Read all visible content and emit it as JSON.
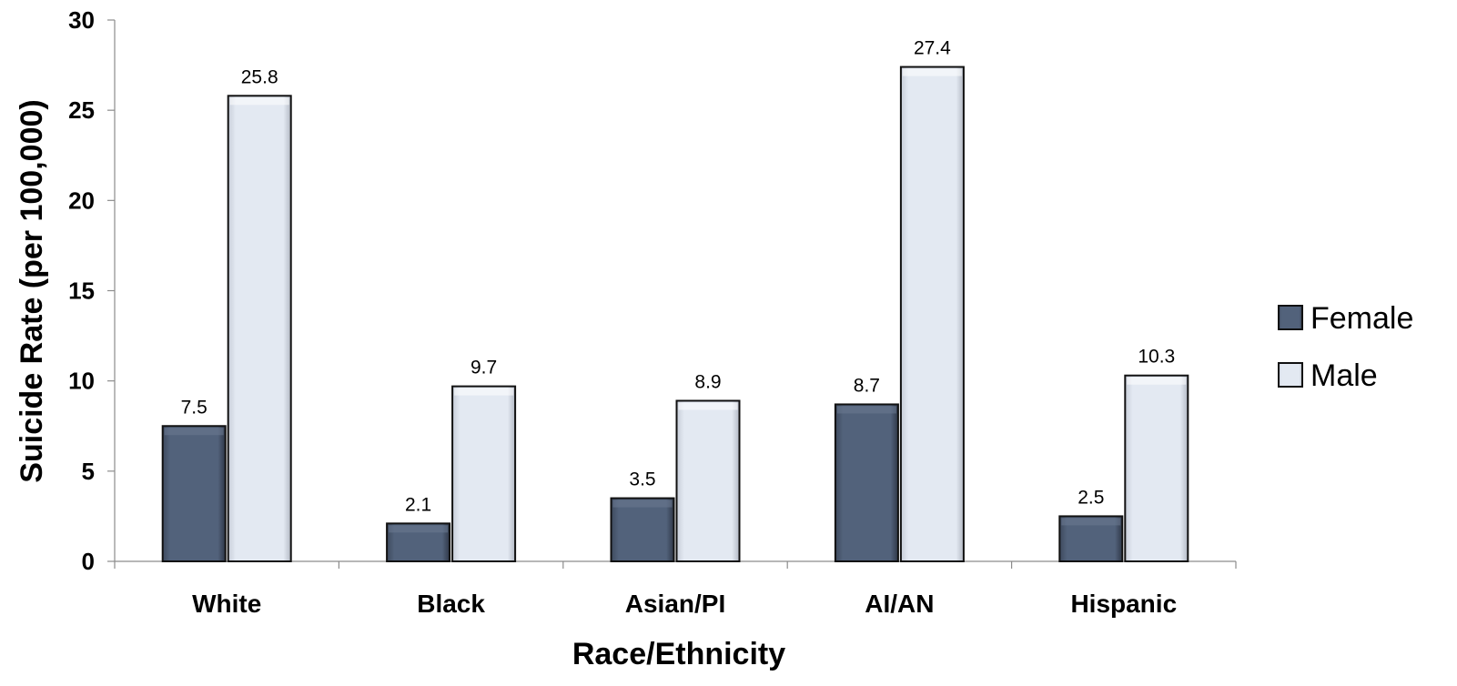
{
  "chart_data": {
    "type": "bar",
    "title": "",
    "xlabel": "Race/Ethnicity",
    "ylabel": "Suicide Rate (per 100,000)",
    "ylim": [
      0,
      30
    ],
    "yticks": [
      0,
      5,
      10,
      15,
      20,
      25,
      30
    ],
    "grid": false,
    "legend_position": "right",
    "categories": [
      "White",
      "Black",
      "Asian/PI",
      "AI/AN",
      "Hispanic"
    ],
    "series": [
      {
        "name": "Female",
        "values": [
          7.5,
          2.1,
          3.5,
          8.7,
          2.5
        ],
        "color": "#4d5c73"
      },
      {
        "name": "Male",
        "values": [
          25.8,
          9.7,
          8.9,
          27.4,
          10.3
        ],
        "color": "#dfe5ef"
      }
    ]
  }
}
